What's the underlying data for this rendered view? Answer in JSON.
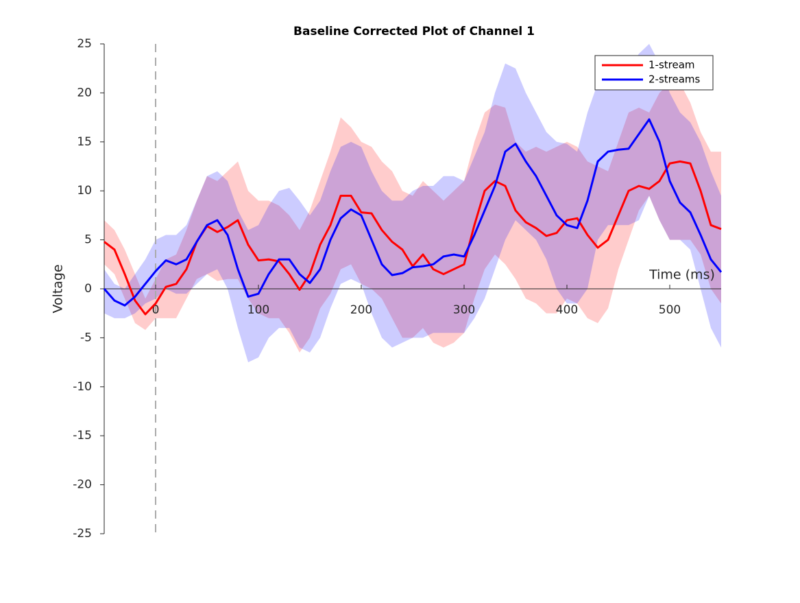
{
  "chart_data": {
    "type": "line",
    "title": "Baseline Corrected Plot of Channel 1",
    "xlabel": "Time (ms)",
    "ylabel": "Voltage",
    "x": [
      -50,
      -40,
      -30,
      -20,
      -10,
      0,
      10,
      20,
      30,
      40,
      50,
      60,
      70,
      80,
      90,
      100,
      110,
      120,
      130,
      140,
      150,
      160,
      170,
      180,
      190,
      200,
      210,
      220,
      230,
      240,
      250,
      260,
      270,
      280,
      290,
      300,
      310,
      320,
      330,
      340,
      350,
      360,
      370,
      380,
      390,
      400,
      410,
      420,
      430,
      440,
      450,
      460,
      470,
      480,
      490,
      500,
      510,
      520,
      530,
      540,
      550
    ],
    "series": [
      {
        "name": "1-stream",
        "color": "#ff0000",
        "values": [
          4.8,
          4.0,
          1.5,
          -1.2,
          -2.6,
          -1.5,
          0.2,
          0.5,
          2.0,
          4.8,
          6.4,
          5.8,
          6.3,
          7.0,
          4.5,
          2.9,
          3.0,
          2.8,
          1.5,
          -0.1,
          1.5,
          4.5,
          6.5,
          9.5,
          9.5,
          7.8,
          7.7,
          6.0,
          4.8,
          4.0,
          2.3,
          3.5,
          2.0,
          1.5,
          2.0,
          2.5,
          6.5,
          10.0,
          11.0,
          10.5,
          8.0,
          6.8,
          6.2,
          5.4,
          5.7,
          7.0,
          7.2,
          5.5,
          4.2,
          5.0,
          7.5,
          10.0,
          10.5,
          10.2,
          11.0,
          12.8,
          13.0,
          12.8,
          10.0,
          6.5,
          6.1
        ],
        "upper": [
          7,
          6,
          4,
          1.5,
          -1,
          1,
          3,
          3.5,
          6,
          9,
          11.5,
          11,
          12,
          13,
          10,
          9,
          9,
          8.5,
          7.5,
          6,
          8,
          11,
          14,
          17.5,
          16.5,
          15,
          14.5,
          13,
          12,
          10,
          9.5,
          11,
          10,
          9,
          10,
          11,
          15,
          18,
          18.8,
          18.5,
          15,
          14,
          14.5,
          14,
          14.5,
          15,
          14.5,
          13,
          12.5,
          12,
          15,
          18,
          18.5,
          18,
          20,
          21,
          21,
          19,
          16,
          14,
          14
        ],
        "lower": [
          2.5,
          1.5,
          -1,
          -3.5,
          -4.2,
          -3,
          -3,
          -3,
          -1,
          1,
          1.5,
          0.8,
          1,
          1,
          -1,
          -2.5,
          -3,
          -3,
          -4.5,
          -6.5,
          -5,
          -2,
          -0.5,
          2,
          2.5,
          0.5,
          0,
          -1,
          -3,
          -5,
          -5,
          -4,
          -5.5,
          -6,
          -5.5,
          -4.5,
          -1,
          2,
          3.5,
          2.5,
          1,
          -1,
          -1.5,
          -2.5,
          -2.5,
          -1,
          -1.5,
          -3,
          -3.5,
          -2,
          2,
          5,
          8,
          9.5,
          7,
          5,
          5,
          5,
          3.5,
          0,
          -1.5
        ]
      },
      {
        "name": "2-streams",
        "color": "#0000ff",
        "values": [
          0,
          -1.2,
          -1.7,
          -0.8,
          0.5,
          1.8,
          2.9,
          2.5,
          3.0,
          4.8,
          6.5,
          7.0,
          5.5,
          2.0,
          -0.8,
          -0.5,
          1.5,
          3.0,
          3.0,
          1.5,
          0.6,
          2.0,
          5.0,
          7.2,
          8.1,
          7.5,
          5.0,
          2.5,
          1.4,
          1.6,
          2.2,
          2.3,
          2.5,
          3.3,
          3.5,
          3.3,
          5.5,
          8.0,
          10.5,
          14.0,
          14.8,
          13.0,
          11.5,
          9.5,
          7.5,
          6.5,
          6.2,
          9.0,
          13.0,
          14.0,
          14.2,
          14.3,
          15.8,
          17.3,
          15.0,
          11.0,
          8.8,
          7.8,
          5.5,
          3.0,
          1.7
        ],
        "upper": [
          2,
          0.5,
          0,
          1.5,
          3,
          5,
          5.5,
          5.5,
          6.5,
          9,
          11.5,
          12,
          11,
          8,
          6,
          6.5,
          8.5,
          10,
          10.3,
          9,
          7.5,
          9,
          12,
          14.5,
          15,
          14.5,
          12,
          10,
          9,
          9,
          10,
          10.5,
          10.5,
          11.5,
          11.5,
          11,
          13.5,
          16,
          20,
          23,
          22.5,
          20,
          18,
          16,
          15,
          14.8,
          14,
          18,
          21,
          21.5,
          22,
          22.5,
          24,
          25,
          23,
          20,
          18,
          17,
          15,
          12,
          9.5
        ],
        "lower": [
          -2.5,
          -3,
          -3,
          -2.5,
          -1.5,
          -1,
          0,
          -0.5,
          -0.5,
          0.5,
          1.5,
          2,
          0,
          -4,
          -7.5,
          -7,
          -5,
          -4,
          -4,
          -6,
          -6.5,
          -5,
          -2,
          0.5,
          1,
          0.5,
          -2.5,
          -5,
          -6,
          -5.5,
          -5,
          -5,
          -4.5,
          -4.5,
          -4.5,
          -4.5,
          -3,
          -1,
          2,
          5,
          7,
          6,
          5,
          3,
          0,
          -1.5,
          -1.5,
          0,
          5,
          6.5,
          6.5,
          6.5,
          7,
          9.5,
          7,
          5,
          5,
          4,
          0,
          -4,
          -6
        ]
      }
    ],
    "xlim": [
      -50,
      550
    ],
    "xticks": [
      0,
      100,
      200,
      300,
      400,
      500
    ],
    "ylim": [
      -25,
      25
    ],
    "yticks": [
      -25,
      -20,
      -15,
      -10,
      -5,
      0,
      5,
      10,
      15,
      20,
      25
    ],
    "vline": 0,
    "legend": "upper right",
    "grid": false
  }
}
